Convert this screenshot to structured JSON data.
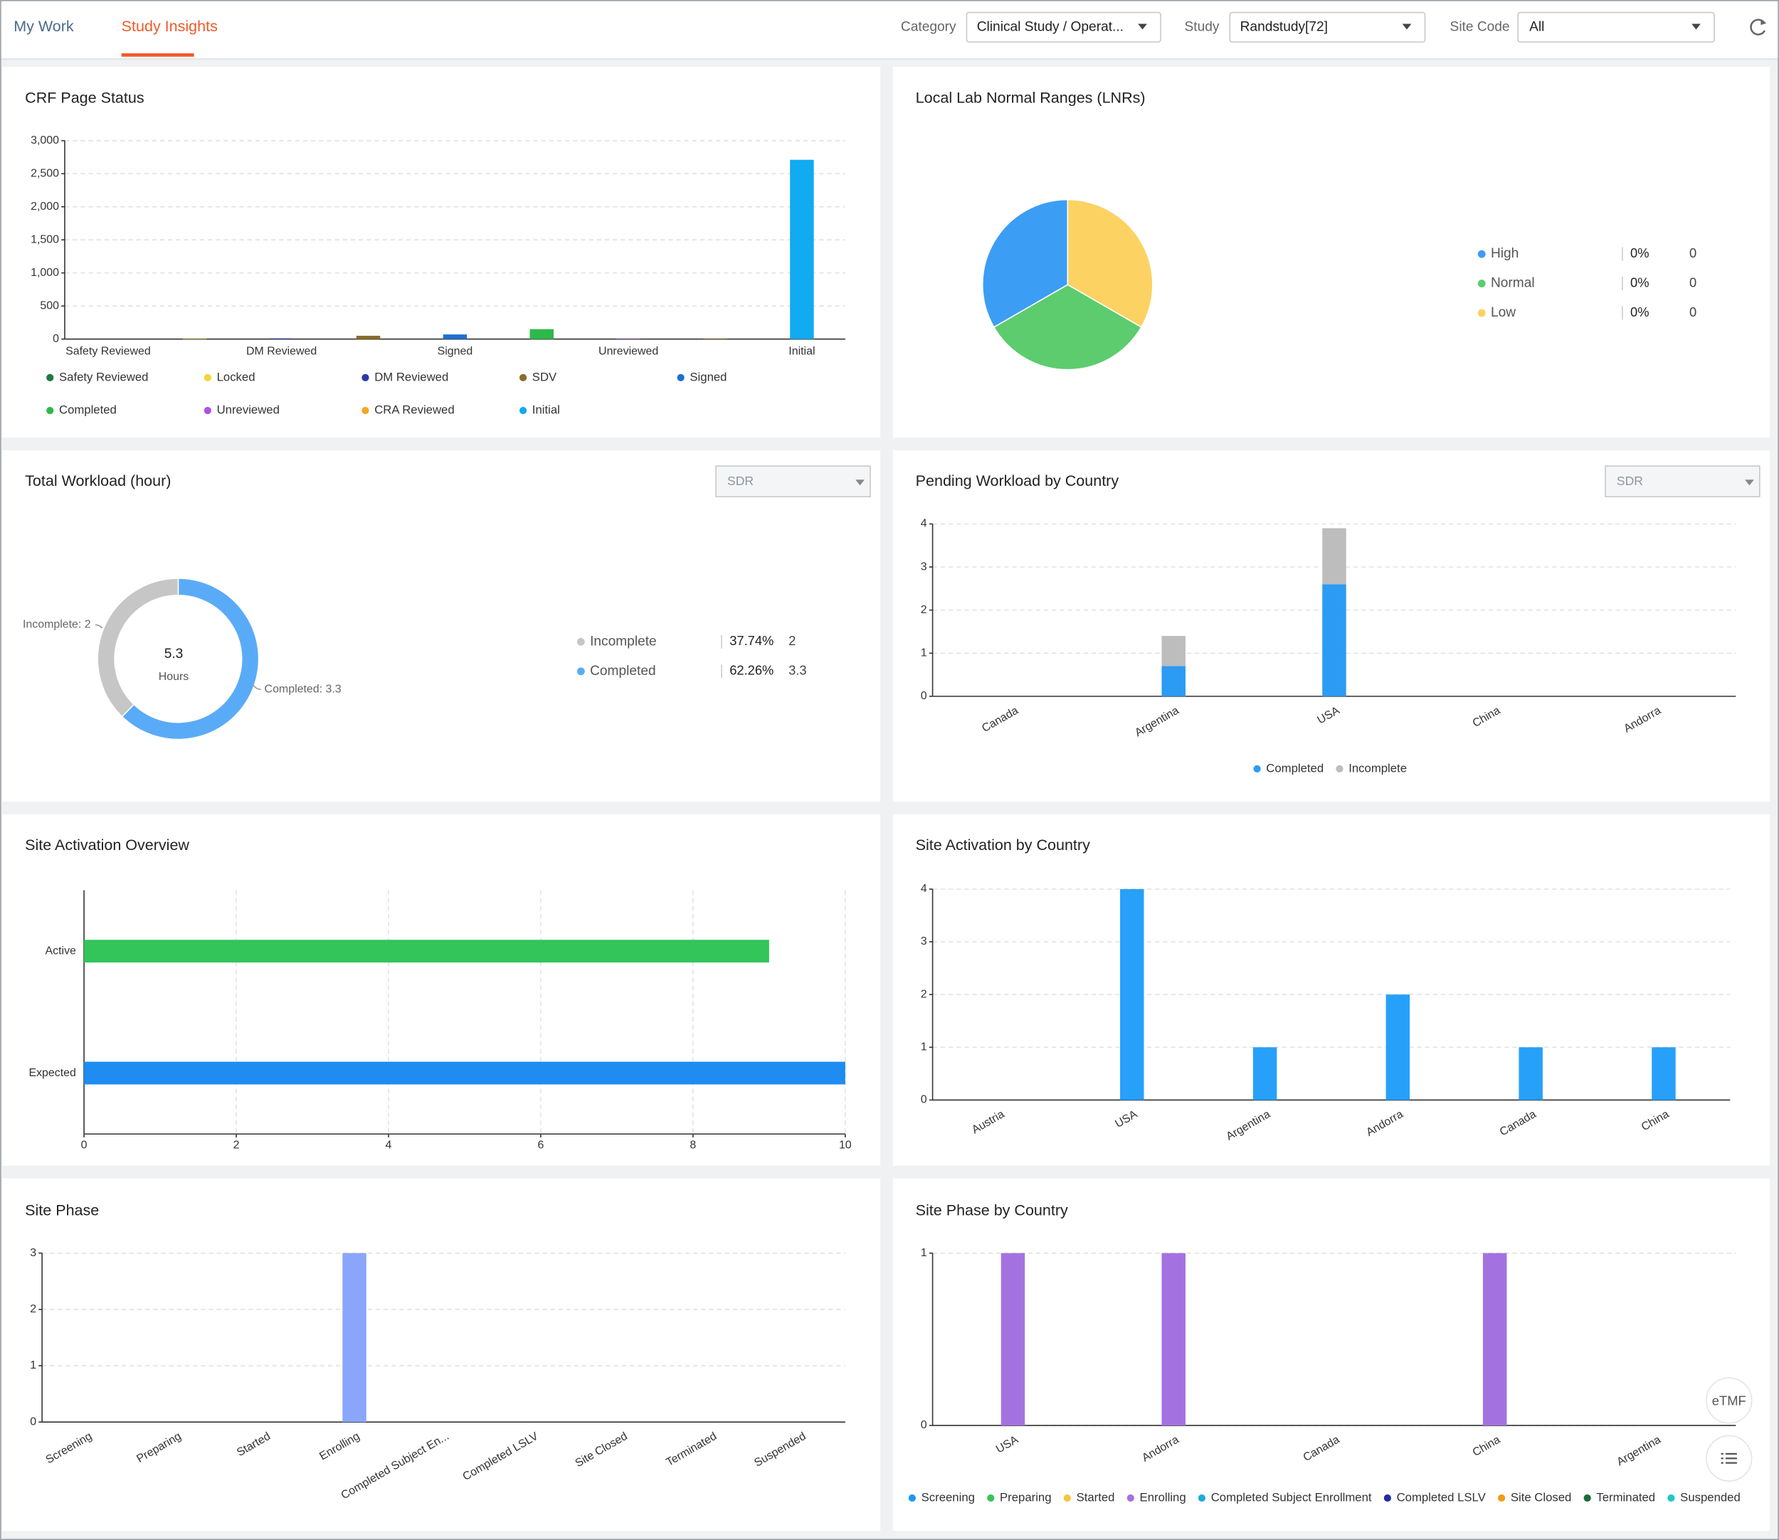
{
  "nav": {
    "tabs": [
      "My Work",
      "Study Insights"
    ],
    "filters": [
      {
        "label": "Category",
        "value": "Clinical Study / Operat..."
      },
      {
        "label": "Study",
        "value": "Randstudy[72]"
      },
      {
        "label": "Site Code",
        "value": "All"
      }
    ]
  },
  "floating_button": "eTMF",
  "chart_data": [
    {
      "type": "bar",
      "title": "CRF Page Status",
      "categories": [
        "Safety Reviewed",
        null,
        "DM Reviewed",
        null,
        "Signed",
        null,
        "Unreviewed",
        null,
        "Initial"
      ],
      "values": [
        0,
        5,
        10,
        50,
        70,
        150,
        5,
        3,
        2710
      ],
      "colors": [
        "#1a7a3f",
        "#f5d33a",
        "#2a3aa8",
        "#8a6d2a",
        "#1f6fd1",
        "#2eb84b",
        "#b04fe8",
        "#f5a623",
        "#12aaf0"
      ],
      "legend": [
        "Safety Reviewed",
        "Locked",
        "DM Reviewed",
        "SDV",
        "Signed",
        "Completed",
        "Unreviewed",
        "CRA Reviewed",
        "Initial"
      ],
      "ylim": [
        0,
        3000
      ],
      "yticks": [
        0,
        500,
        {
          "value": 1000,
          "label": "1,000"
        },
        {
          "value": 1500,
          "label": "1,500"
        },
        {
          "value": 2000,
          "label": "2,000"
        },
        {
          "value": 2500,
          "label": "2,500"
        },
        {
          "value": 3000,
          "label": "3,000"
        }
      ],
      "grid": true
    },
    {
      "type": "pie",
      "title": "Local Lab Normal Ranges (LNRs)",
      "categories": [
        "High",
        "Normal",
        "Low"
      ],
      "values": [
        0,
        0,
        0
      ],
      "percent_labels": [
        "0%",
        "0%",
        "0%"
      ],
      "colors": [
        "#3c9df5",
        "#5ccc6e",
        "#fcd262"
      ]
    },
    {
      "type": "donut",
      "title": "Total Workload (hour)",
      "selector": "SDR",
      "categories": [
        "Incomplete",
        "Completed"
      ],
      "values": [
        2,
        3.3
      ],
      "percent_labels": [
        "37.74%",
        "62.26%"
      ],
      "slice_labels": [
        "Incomplete: 2",
        "Completed: 3.3"
      ],
      "colors": [
        "#c6c6c6",
        "#5aabf7"
      ],
      "total": 5.3,
      "center_label": "Hours"
    },
    {
      "type": "stacked_bar",
      "title": "Pending Workload by Country",
      "selector": "SDR",
      "categories": [
        "Canada",
        "Argentina",
        "USA",
        "China",
        "Andorra"
      ],
      "series": [
        {
          "name": "Completed",
          "color": "#2b9bf4",
          "values": [
            0,
            0.7,
            2.6,
            0,
            0
          ]
        },
        {
          "name": "Incomplete",
          "color": "#bdbdbd",
          "values": [
            0,
            0.7,
            1.3,
            0,
            0
          ]
        }
      ],
      "ylim": [
        0,
        4
      ],
      "yticks": [
        0,
        1,
        2,
        3,
        4
      ],
      "grid": true
    },
    {
      "type": "hbar",
      "title": "Site Activation Overview",
      "categories": [
        "Active",
        "Expected"
      ],
      "values": [
        9,
        10
      ],
      "colors": [
        "#33c45a",
        "#1e8cf0"
      ],
      "xlim": [
        0,
        10
      ],
      "xticks": [
        0,
        2,
        4,
        6,
        8,
        10
      ],
      "grid": true
    },
    {
      "type": "bar",
      "title": "Site Activation by Country",
      "categories": [
        "Austria",
        "USA",
        "Argentina",
        "Andorra",
        "Canada",
        "China"
      ],
      "values": [
        0,
        4,
        1,
        2,
        1,
        1
      ],
      "color": "#27a0fa",
      "ylim": [
        0,
        4
      ],
      "yticks": [
        0,
        1,
        2,
        3,
        4
      ],
      "grid": true
    },
    {
      "type": "bar",
      "title": "Site Phase",
      "categories": [
        "Screening",
        "Preparing",
        "Started",
        "Enrolling",
        "Completed Subject En...",
        "Completed LSLV",
        "Site Closed",
        "Terminated",
        "Suspended"
      ],
      "values": [
        0,
        0,
        0,
        3,
        0,
        0,
        0,
        0,
        0
      ],
      "color": "#8aa6fb",
      "ylim": [
        0,
        3
      ],
      "yticks": [
        0,
        1,
        2,
        3
      ],
      "grid": true
    },
    {
      "type": "stacked_bar",
      "title": "Site Phase by Country",
      "categories": [
        "USA",
        "Andorra",
        "Canada",
        "China",
        "Argentina"
      ],
      "series": [
        {
          "name": "Screening",
          "color": "#2196f3",
          "values": [
            0,
            0,
            0,
            0,
            0
          ]
        },
        {
          "name": "Preparing",
          "color": "#36c35a",
          "values": [
            0,
            0,
            0,
            0,
            0
          ]
        },
        {
          "name": "Started",
          "color": "#f8c443",
          "values": [
            0,
            0,
            0,
            0,
            0
          ]
        },
        {
          "name": "Enrolling",
          "color": "#a472e0",
          "values": [
            1,
            1,
            0,
            1,
            0
          ]
        },
        {
          "name": "Completed Subject Enrollment",
          "color": "#1fa9e0",
          "values": [
            0,
            0,
            0,
            0,
            0
          ]
        },
        {
          "name": "Completed LSLV",
          "color": "#1e2f9e",
          "values": [
            0,
            0,
            0,
            0,
            0
          ]
        },
        {
          "name": "Site Closed",
          "color": "#f59a16",
          "values": [
            0,
            0,
            0,
            0,
            0
          ]
        },
        {
          "name": "Terminated",
          "color": "#1a6b3a",
          "values": [
            0,
            0,
            0,
            0,
            0
          ]
        },
        {
          "name": "Suspended",
          "color": "#22c7c7",
          "values": [
            0,
            0,
            0,
            0,
            0
          ]
        }
      ],
      "ylim": [
        0,
        1
      ],
      "yticks": [
        0,
        1
      ],
      "grid": true
    }
  ]
}
